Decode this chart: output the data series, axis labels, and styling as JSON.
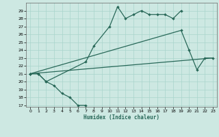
{
  "xlabel": "Humidex (Indice chaleur)",
  "xlim": [
    -0.5,
    23.5
  ],
  "ylim": [
    16.8,
    30.0
  ],
  "yticks": [
    17,
    18,
    19,
    20,
    21,
    22,
    23,
    24,
    25,
    26,
    27,
    28,
    29
  ],
  "xticks": [
    0,
    1,
    2,
    3,
    4,
    5,
    6,
    7,
    8,
    9,
    10,
    11,
    12,
    13,
    14,
    15,
    16,
    17,
    18,
    19,
    20,
    21,
    22,
    23
  ],
  "bg_color": "#cde8e2",
  "grid_color": "#a8d4cc",
  "line_color": "#286858",
  "line_width": 0.9,
  "marker_size": 2.0,
  "line1_x": [
    0,
    1,
    2,
    3,
    4,
    5,
    6,
    7
  ],
  "line1_y": [
    21.0,
    21.0,
    20.0,
    19.5,
    18.5,
    18.0,
    17.0,
    17.0
  ],
  "line2_x": [
    0,
    1,
    2,
    7,
    8,
    10,
    11,
    12,
    13,
    14,
    15,
    16,
    17,
    18,
    19
  ],
  "line2_y": [
    21.0,
    21.0,
    20.0,
    22.5,
    24.5,
    27.0,
    29.5,
    28.0,
    28.5,
    29.0,
    28.5,
    28.5,
    28.5,
    28.0,
    29.0
  ],
  "line3_x": [
    0,
    19,
    20,
    21,
    22,
    23
  ],
  "line3_y": [
    21.0,
    26.5,
    24.0,
    21.5,
    23.0,
    23.0
  ],
  "line4_x": [
    0,
    23
  ],
  "line4_y": [
    21.0,
    23.0
  ]
}
